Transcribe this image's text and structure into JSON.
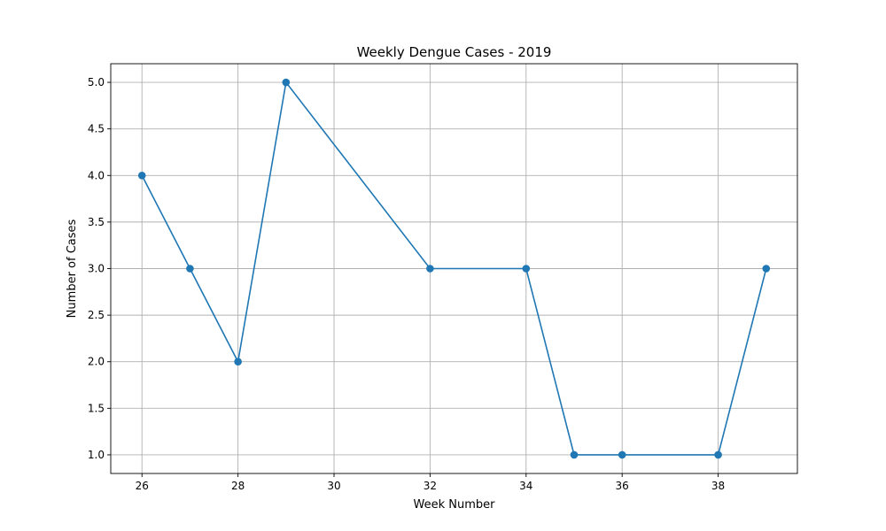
{
  "chart_data": {
    "type": "line",
    "title": "Weekly Dengue Cases - 2019",
    "xlabel": "Week Number",
    "ylabel": "Number of Cases",
    "x": [
      26,
      27,
      28,
      29,
      32,
      34,
      35,
      36,
      38,
      39
    ],
    "series": [
      {
        "values": [
          4,
          3,
          2,
          5,
          3,
          3,
          1,
          1,
          1,
          3
        ],
        "color": "#1f77b4",
        "marker": "circle"
      }
    ],
    "xlim": [
      25.35,
      39.65
    ],
    "ylim": [
      0.8,
      5.2
    ],
    "xticks": [
      26,
      28,
      30,
      32,
      34,
      36,
      38
    ],
    "xtick_labels": [
      "26",
      "28",
      "30",
      "32",
      "34",
      "36",
      "38"
    ],
    "yticks": [
      1.0,
      1.5,
      2.0,
      2.5,
      3.0,
      3.5,
      4.0,
      4.5,
      5.0
    ],
    "ytick_labels": [
      "1.0",
      "1.5",
      "2.0",
      "2.5",
      "3.0",
      "3.5",
      "4.0",
      "4.5",
      "5.0"
    ],
    "grid": true,
    "legend": "none"
  }
}
